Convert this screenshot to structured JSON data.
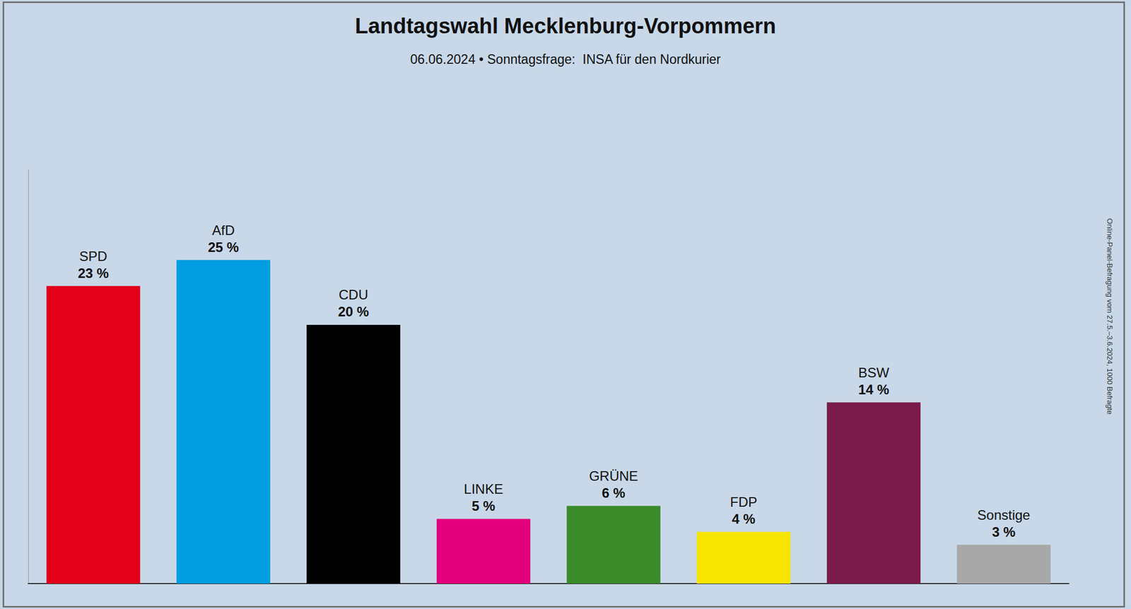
{
  "chart_data": {
    "type": "bar",
    "title": "Landtagswahl Mecklenburg-Vorpommern",
    "subtitle": "06.06.2024 • Sonntagsfrage:  INSA für den Nordkurier",
    "annotations": [
      "Online-Panel-Befragung vom 27.5.–3.6.2024, 1000 Befragte"
    ],
    "categories": [
      "SPD",
      "AfD",
      "CDU",
      "LINKE",
      "GRÜNE",
      "FDP",
      "BSW",
      "Sonstige"
    ],
    "values": [
      23,
      25,
      20,
      5,
      6,
      4,
      14,
      3
    ],
    "value_labels": [
      "23 %",
      "25 %",
      "20 %",
      "5 %",
      "6 %",
      "4 %",
      "14 %",
      "3 %"
    ],
    "colors": [
      "#e2001a",
      "#009ee0",
      "#000000",
      "#e3007d",
      "#3a8a2a",
      "#f5e500",
      "#7a1a4b",
      "#a8a8a8"
    ],
    "ylim": [
      0,
      32
    ],
    "data_labels": true,
    "tick_labels": false,
    "grid": false
  }
}
